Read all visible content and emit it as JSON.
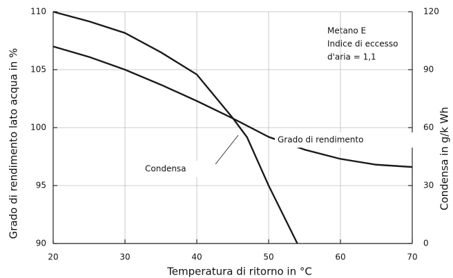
{
  "chart_data": {
    "type": "line",
    "x_label": "Temperatura di ritorno in °C",
    "y_label": "Grado di rendimento lato acqua in %",
    "y2_label": "Condensa in g/k Wh",
    "annotation": [
      "Metano E",
      "Indice di eccesso",
      "d'aria = 1,1"
    ],
    "xlim": [
      20,
      70
    ],
    "xticks": [
      20,
      30,
      40,
      50,
      60,
      70
    ],
    "ylim": [
      90,
      110
    ],
    "yticks": [
      90,
      95,
      100,
      105,
      110
    ],
    "y2lim": [
      0,
      120
    ],
    "y2ticks": [
      0,
      30,
      60,
      90,
      120
    ],
    "grid": true,
    "series": [
      {
        "name": "Grado di rendimento",
        "color": "#1a1a1a",
        "x": [
          20,
          25,
          30,
          35,
          40,
          45,
          50,
          55,
          60,
          65,
          70
        ],
        "values": [
          107,
          106.1,
          105,
          103.7,
          102.3,
          100.8,
          99.2,
          98.1,
          97.3,
          96.8,
          96.6
        ]
      },
      {
        "name": "Condensa",
        "color": "#1a1a1a",
        "axis": "y2",
        "x": [
          20,
          25,
          30,
          35,
          40,
          45,
          47,
          50,
          54
        ],
        "values": [
          120,
          115,
          109,
          99,
          87.5,
          65,
          55,
          30,
          0
        ]
      }
    ]
  }
}
